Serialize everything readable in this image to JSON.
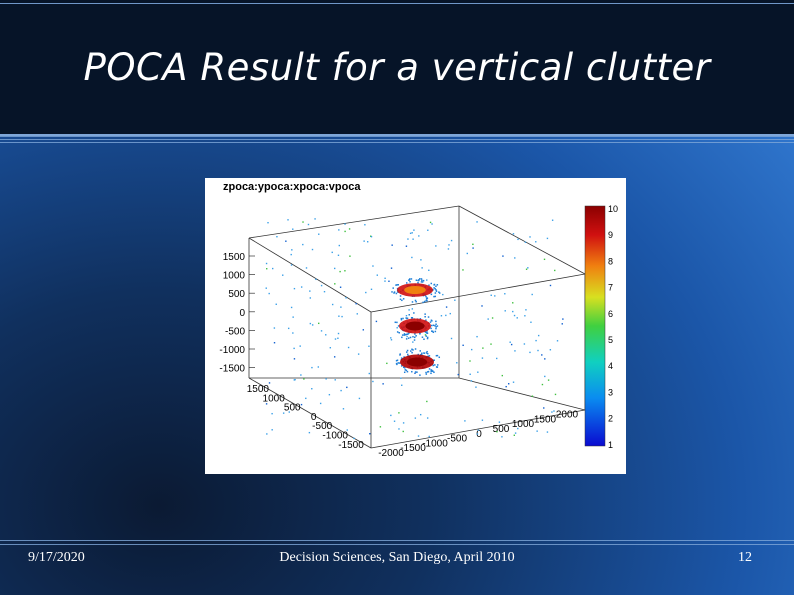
{
  "slide": {
    "title": "POCA Result for a vertical clutter",
    "date": "9/17/2020",
    "footer_center": "Decision Sciences, San Diego, April 2010",
    "page_number": "12"
  },
  "figure": {
    "plot_title": "zpoca:ypoca:xpoca:vpoca",
    "z_ticks": [
      "1500",
      "1000",
      "500",
      "0",
      "-500",
      "-1000",
      "-1500"
    ],
    "y_ticks": [
      "1500",
      "1000",
      "500",
      "0",
      "-500",
      "-1000",
      "-1500"
    ],
    "x_ticks": [
      "-2000",
      "-1500",
      "-1000",
      "-500",
      "0",
      "500",
      "1000",
      "1500",
      "2000"
    ],
    "colorbar_ticks": [
      "10",
      "9",
      "8",
      "7",
      "6",
      "5",
      "4",
      "3",
      "2",
      "1"
    ],
    "colors": {
      "high": "#8b0000",
      "mid": "#f5d800",
      "low": "#0a0ad0"
    }
  },
  "chart_data": {
    "type": "scatter",
    "title": "zpoca:ypoca:xpoca:vpoca",
    "xlim": [
      -2000,
      2000
    ],
    "ylim": [
      -1500,
      1500
    ],
    "zlim": [
      -1500,
      1500
    ],
    "color_range": [
      1,
      10
    ]
  }
}
